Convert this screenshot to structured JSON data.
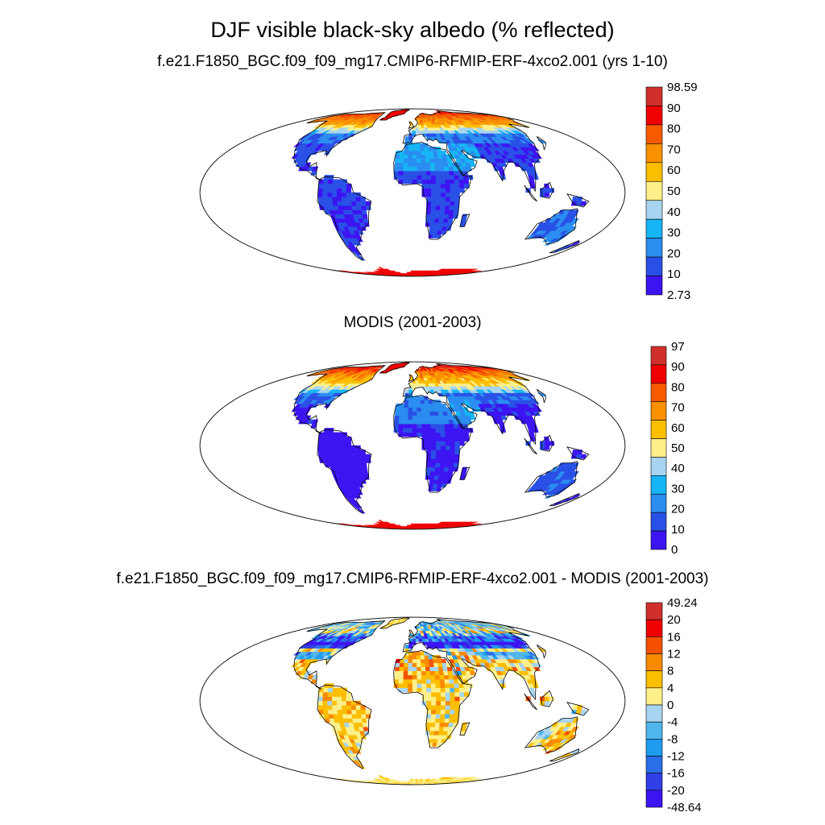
{
  "figure": {
    "title": "DJF visible black-sky albedo (% reflected)"
  },
  "panels": [
    {
      "id": "model",
      "title": "f.e21.F1850_BGC.f09_f09_mg17.CMIP6-RFMIP-ERF-4xco2.001 (yrs 1-10)",
      "colorbar_labels": [
        "98.59",
        "90",
        "80",
        "70",
        "60",
        "50",
        "40",
        "30",
        "20",
        "10",
        "2.73"
      ],
      "colorbar_colors": [
        "#d0302c",
        "#f00000",
        "#f85a00",
        "#f99000",
        "#fbbe00",
        "#fdf08a",
        "#a7d4f0",
        "#16b5f5",
        "#2a8df0",
        "#2950e6",
        "#3c14f2"
      ],
      "palette": [
        "#3c14f2",
        "#2950e6",
        "#2a8df0",
        "#16b5f5",
        "#a7d4f0",
        "#fdf08a",
        "#fbbe00",
        "#f99000",
        "#f85a00",
        "#f00000",
        "#d0302c"
      ]
    },
    {
      "id": "obs",
      "title": "MODIS (2001-2003)",
      "colorbar_labels": [
        "97",
        "90",
        "80",
        "70",
        "60",
        "50",
        "40",
        "30",
        "20",
        "10",
        "0"
      ],
      "colorbar_colors": [
        "#d0302c",
        "#f00000",
        "#f85a00",
        "#f99000",
        "#fbbe00",
        "#fdf08a",
        "#a7d4f0",
        "#16b5f5",
        "#2a8df0",
        "#2950e6",
        "#3c14f2"
      ],
      "palette": [
        "#3c14f2",
        "#2950e6",
        "#2a8df0",
        "#16b5f5",
        "#a7d4f0",
        "#fdf08a",
        "#fbbe00",
        "#f99000",
        "#f85a00",
        "#f00000",
        "#d0302c"
      ]
    },
    {
      "id": "diff",
      "title": "f.e21.F1850_BGC.f09_f09_mg17.CMIP6-RFMIP-ERF-4xco2.001 - MODIS (2001-2003)",
      "colorbar_labels": [
        "49.24",
        "20",
        "16",
        "12",
        "8",
        "4",
        "0",
        "-4",
        "-8",
        "-12",
        "-16",
        "-20",
        "-48.64"
      ],
      "colorbar_colors": [
        "#d0302c",
        "#f00000",
        "#f55000",
        "#f88a00",
        "#fbbe00",
        "#fdf08a",
        "#a7d4f0",
        "#4fb6ee",
        "#1d9cf0",
        "#2a6ee8",
        "#3040e6",
        "#3c14f2"
      ],
      "palette": [
        "#3c14f2",
        "#3040e6",
        "#2a6ee8",
        "#1d9cf0",
        "#4fb6ee",
        "#a7d4f0",
        "#fdf08a",
        "#fbbe00",
        "#f88a00",
        "#f55000",
        "#f00000",
        "#d0302c"
      ]
    }
  ]
}
